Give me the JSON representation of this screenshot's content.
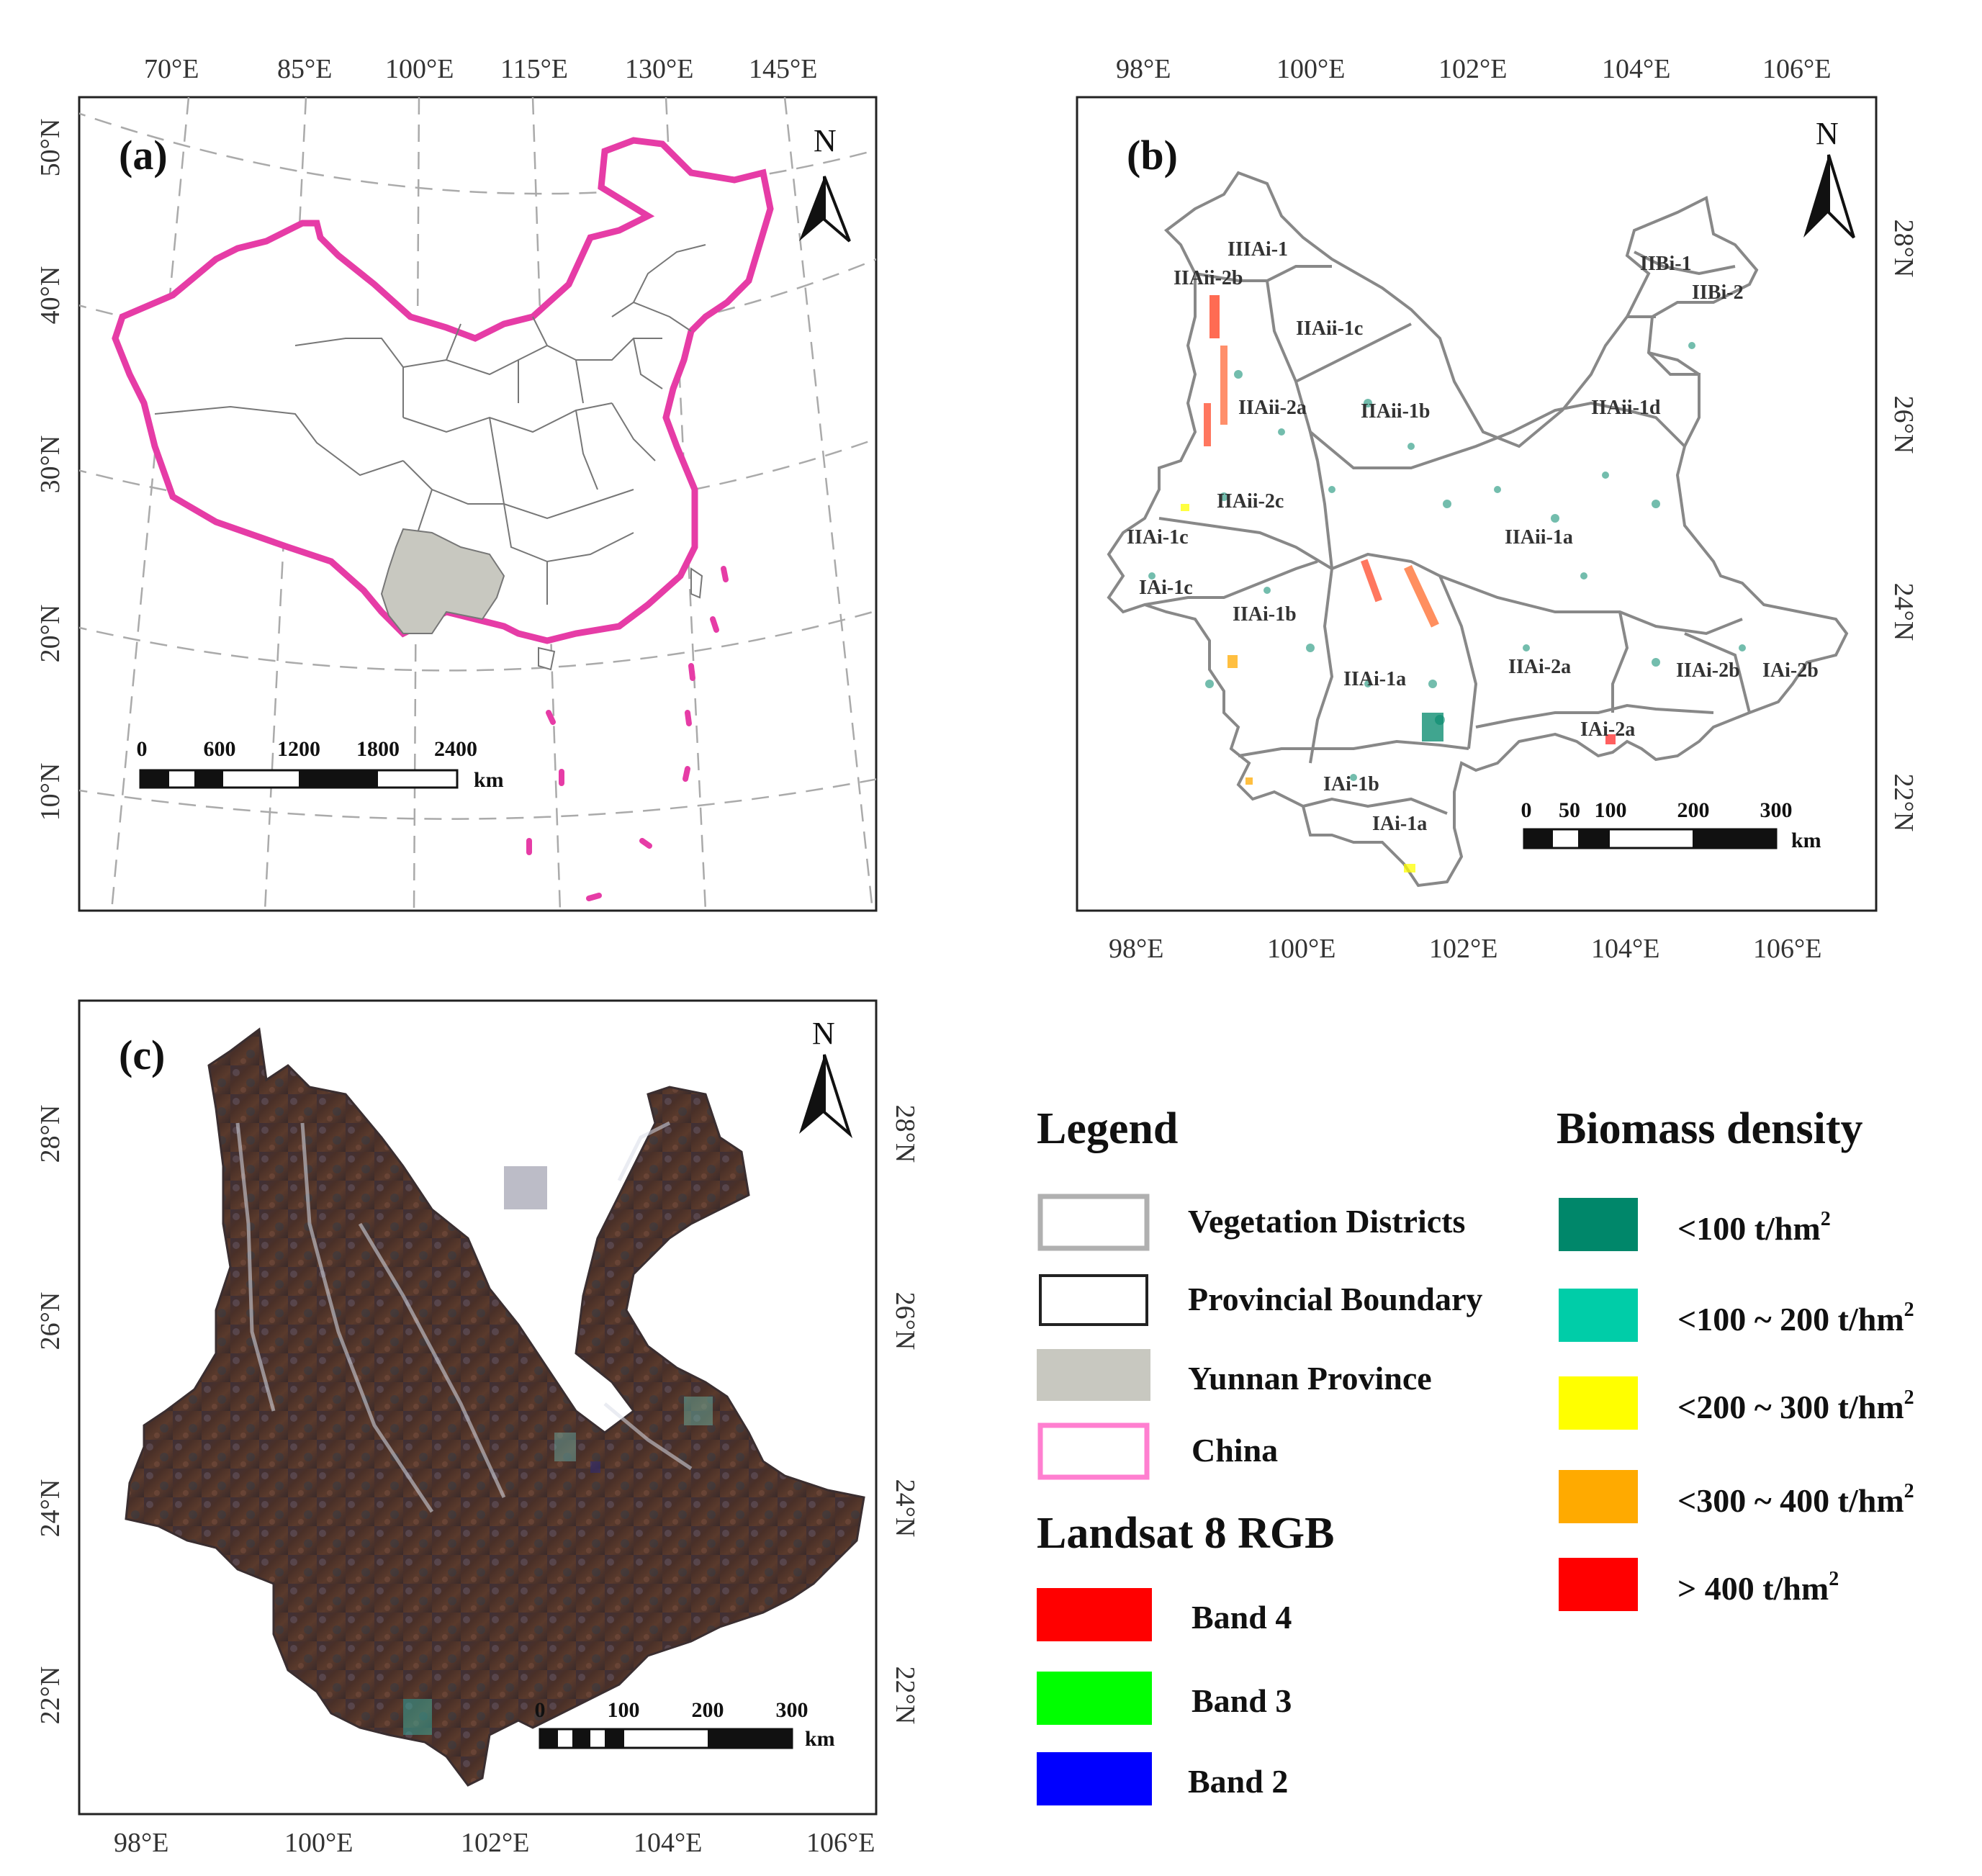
{
  "panels": {
    "a": {
      "label": "(a)",
      "north": "N",
      "lon_labels": [
        "70°E",
        "85°E",
        "100°E",
        "115°E",
        "130°E",
        "145°E"
      ],
      "lat_labels": [
        "50°N",
        "40°N",
        "30°N",
        "20°N",
        "10°N"
      ],
      "scale": {
        "ticks": [
          "0",
          "600",
          "1200",
          "1800",
          "2400"
        ],
        "unit": "km"
      }
    },
    "b": {
      "label": "(b)",
      "north": "N",
      "lon_labels": [
        "98°E",
        "100°E",
        "102°E",
        "104°E",
        "106°E"
      ],
      "lat_labels": [
        "28°N",
        "26°N",
        "24°N",
        "22°N"
      ],
      "districts": [
        "IIIAi-1",
        "IIAii-2b",
        "IIAii-1c",
        "IIAii-2a",
        "IIAii-1b",
        "IIAii-1d",
        "IIBi-1",
        "IIBi-2",
        "IIAii-2c",
        "IIAii-1a",
        "IIAi-1c",
        "IAi-1c",
        "IIAi-1b",
        "IIAi-1a",
        "IIAi-2a",
        "IIAi-2b",
        "IAi-2b",
        "IAi-2a",
        "IAi-1b",
        "IAi-1a"
      ],
      "scale": {
        "ticks": [
          "0",
          "50",
          "100",
          "200",
          "300"
        ],
        "unit": "km"
      }
    },
    "c": {
      "label": "(c)",
      "north": "N",
      "lon_labels": [
        "98°E",
        "100°E",
        "102°E",
        "104°E",
        "106°E"
      ],
      "lat_labels": [
        "28°N",
        "26°N",
        "24°N",
        "22°N"
      ],
      "scale": {
        "ticks": [
          "0",
          "100",
          "200",
          "300"
        ],
        "unit": "km"
      }
    }
  },
  "legend": {
    "title": "Legend",
    "items": [
      {
        "label": "Vegetation Districts",
        "stroke": "#b0b0b0",
        "fill": "#ffffff"
      },
      {
        "label": "Provincial Boundary",
        "stroke": "#222222",
        "fill": "#ffffff"
      },
      {
        "label": "Yunnan Province",
        "stroke": "#c8c8c0",
        "fill": "#c8c8c0"
      },
      {
        "label": "China",
        "stroke": "#ff7fd0",
        "fill": "#ffffff"
      }
    ],
    "landsat_title": "Landsat 8 RGB",
    "landsat_items": [
      {
        "label": "Band 4",
        "color": "#ff0000"
      },
      {
        "label": "Band 3",
        "color": "#00ff00"
      },
      {
        "label": "Band 2",
        "color": "#0000ff"
      }
    ],
    "biomass_title": "Biomass density",
    "biomass_items": [
      {
        "label": "<100 t/hm",
        "sup": "2",
        "color": "#00876a"
      },
      {
        "label": "<100 ~ 200 t/hm",
        "sup": "2",
        "color": "#00cda8"
      },
      {
        "label": "<200 ~ 300 t/hm",
        "sup": "2",
        "color": "#ffff00"
      },
      {
        "label": "<300 ~ 400 t/hm",
        "sup": "2",
        "color": "#ffaa00"
      },
      {
        "label": "> 400 t/hm",
        "sup": "2",
        "color": "#ff0000"
      }
    ]
  }
}
